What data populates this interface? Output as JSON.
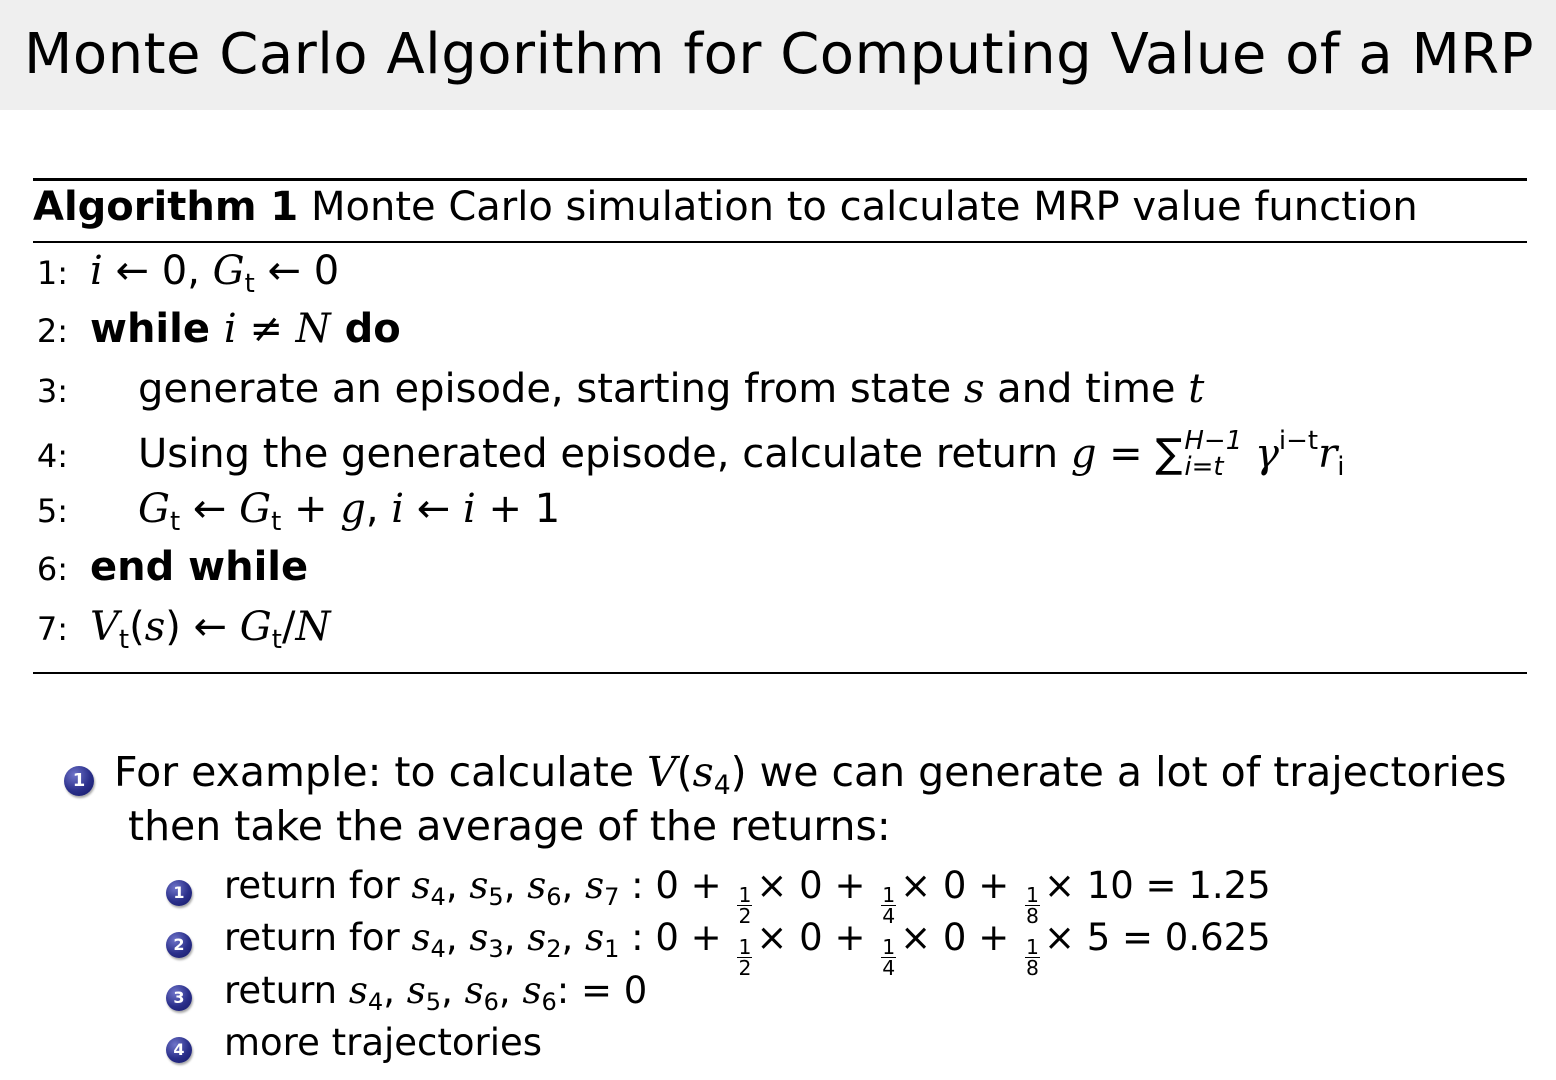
{
  "slide": {
    "title": "Monte Carlo Algorithm for Computing Value of a MRP"
  },
  "algorithm": {
    "label": "Algorithm 1",
    "caption": "Monte Carlo simulation to calculate MRP value function",
    "lines": [
      {
        "num": "1:",
        "indent": 0,
        "segments": [
          {
            "s": "it",
            "t": "i"
          },
          {
            "s": "n",
            "t": " ← 0, "
          },
          {
            "s": "it",
            "t": "G"
          },
          {
            "s": "sub",
            "t": "t"
          },
          {
            "s": "n",
            "t": " ← 0"
          }
        ]
      },
      {
        "num": "2:",
        "indent": 0,
        "segments": [
          {
            "s": "b",
            "t": "while "
          },
          {
            "s": "it",
            "t": "i"
          },
          {
            "s": "n",
            "t": " ≠ "
          },
          {
            "s": "it",
            "t": "N"
          },
          {
            "s": "b",
            "t": " do"
          }
        ]
      },
      {
        "num": "3:",
        "indent": 1,
        "segments": [
          {
            "s": "n",
            "t": "generate an episode, starting from state "
          },
          {
            "s": "it",
            "t": "s"
          },
          {
            "s": "n",
            "t": " and time "
          },
          {
            "s": "it",
            "t": "t"
          }
        ]
      },
      {
        "num": "4:",
        "indent": 1,
        "segments": [
          {
            "s": "n",
            "t": "Using the generated episode, calculate return "
          },
          {
            "s": "it",
            "t": "g"
          },
          {
            "s": "n",
            "t": " = "
          },
          {
            "s": "sum",
            "t": "∑",
            "sup": "H−1",
            "sub": "i=t"
          },
          {
            "s": "it",
            "t": " γ"
          },
          {
            "s": "sup",
            "t": "i−t"
          },
          {
            "s": "it",
            "t": "r"
          },
          {
            "s": "sub",
            "t": "i"
          }
        ]
      },
      {
        "num": "5:",
        "indent": 1,
        "segments": [
          {
            "s": "it",
            "t": "G"
          },
          {
            "s": "sub",
            "t": "t"
          },
          {
            "s": "n",
            "t": " ← "
          },
          {
            "s": "it",
            "t": "G"
          },
          {
            "s": "sub",
            "t": "t"
          },
          {
            "s": "n",
            "t": " + "
          },
          {
            "s": "it",
            "t": "g"
          },
          {
            "s": "n",
            "t": ", "
          },
          {
            "s": "it",
            "t": "i"
          },
          {
            "s": "n",
            "t": " ← "
          },
          {
            "s": "it",
            "t": "i"
          },
          {
            "s": "n",
            "t": " + 1"
          }
        ]
      },
      {
        "num": "6:",
        "indent": 0,
        "segments": [
          {
            "s": "b",
            "t": "end while"
          }
        ]
      },
      {
        "num": "7:",
        "indent": 0,
        "segments": [
          {
            "s": "it",
            "t": "V"
          },
          {
            "s": "sub",
            "t": "t"
          },
          {
            "s": "n",
            "t": "("
          },
          {
            "s": "it",
            "t": "s"
          },
          {
            "s": "n",
            "t": ") ← "
          },
          {
            "s": "it",
            "t": "G"
          },
          {
            "s": "sub",
            "t": "t"
          },
          {
            "s": "n",
            "t": "/"
          },
          {
            "s": "it",
            "t": "N"
          }
        ]
      }
    ]
  },
  "example": {
    "bullet": "1",
    "line1": [
      {
        "s": "n",
        "t": "For example: to calculate "
      },
      {
        "s": "it",
        "t": "V"
      },
      {
        "s": "n",
        "t": "("
      },
      {
        "s": "it",
        "t": "s"
      },
      {
        "s": "sub",
        "t": "4"
      },
      {
        "s": "n",
        "t": ") we can generate a lot of trajectories"
      }
    ],
    "line2": [
      {
        "s": "n",
        "t": "then take the average of the returns:"
      }
    ],
    "items": [
      {
        "bullet": "1",
        "segments": [
          {
            "s": "n",
            "t": "return for "
          },
          {
            "s": "it",
            "t": "s"
          },
          {
            "s": "sub",
            "t": "4"
          },
          {
            "s": "n",
            "t": ", "
          },
          {
            "s": "it",
            "t": "s"
          },
          {
            "s": "sub",
            "t": "5"
          },
          {
            "s": "n",
            "t": ", "
          },
          {
            "s": "it",
            "t": "s"
          },
          {
            "s": "sub",
            "t": "6"
          },
          {
            "s": "n",
            "t": ", "
          },
          {
            "s": "it",
            "t": "s"
          },
          {
            "s": "sub",
            "t": "7"
          },
          {
            "s": "n",
            "t": " : 0 + "
          },
          {
            "s": "frac",
            "t": "1",
            "d": "2"
          },
          {
            "s": "n",
            "t": "× 0 + "
          },
          {
            "s": "frac",
            "t": "1",
            "d": "4"
          },
          {
            "s": "n",
            "t": "× 0 + "
          },
          {
            "s": "frac",
            "t": "1",
            "d": "8"
          },
          {
            "s": "n",
            "t": "× 10 = 1.25"
          }
        ]
      },
      {
        "bullet": "2",
        "segments": [
          {
            "s": "n",
            "t": "return for "
          },
          {
            "s": "it",
            "t": "s"
          },
          {
            "s": "sub",
            "t": "4"
          },
          {
            "s": "n",
            "t": ", "
          },
          {
            "s": "it",
            "t": "s"
          },
          {
            "s": "sub",
            "t": "3"
          },
          {
            "s": "n",
            "t": ", "
          },
          {
            "s": "it",
            "t": "s"
          },
          {
            "s": "sub",
            "t": "2"
          },
          {
            "s": "n",
            "t": ", "
          },
          {
            "s": "it",
            "t": "s"
          },
          {
            "s": "sub",
            "t": "1"
          },
          {
            "s": "n",
            "t": " : 0 + "
          },
          {
            "s": "frac",
            "t": "1",
            "d": "2"
          },
          {
            "s": "n",
            "t": "× 0 + "
          },
          {
            "s": "frac",
            "t": "1",
            "d": "4"
          },
          {
            "s": "n",
            "t": "× 0 + "
          },
          {
            "s": "frac",
            "t": "1",
            "d": "8"
          },
          {
            "s": "n",
            "t": "× 5 = 0.625"
          }
        ]
      },
      {
        "bullet": "3",
        "segments": [
          {
            "s": "n",
            "t": "return "
          },
          {
            "s": "it",
            "t": "s"
          },
          {
            "s": "sub",
            "t": "4"
          },
          {
            "s": "n",
            "t": ", "
          },
          {
            "s": "it",
            "t": "s"
          },
          {
            "s": "sub",
            "t": "5"
          },
          {
            "s": "n",
            "t": ", "
          },
          {
            "s": "it",
            "t": "s"
          },
          {
            "s": "sub",
            "t": "6"
          },
          {
            "s": "n",
            "t": ", "
          },
          {
            "s": "it",
            "t": "s"
          },
          {
            "s": "sub",
            "t": "6"
          },
          {
            "s": "n",
            "t": ": = 0"
          }
        ]
      },
      {
        "bullet": "4",
        "segments": [
          {
            "s": "n",
            "t": "more trajectories"
          }
        ]
      }
    ]
  },
  "colors": {
    "title_bar": "#efefef",
    "bullet_ball": "#2a2f8a"
  }
}
